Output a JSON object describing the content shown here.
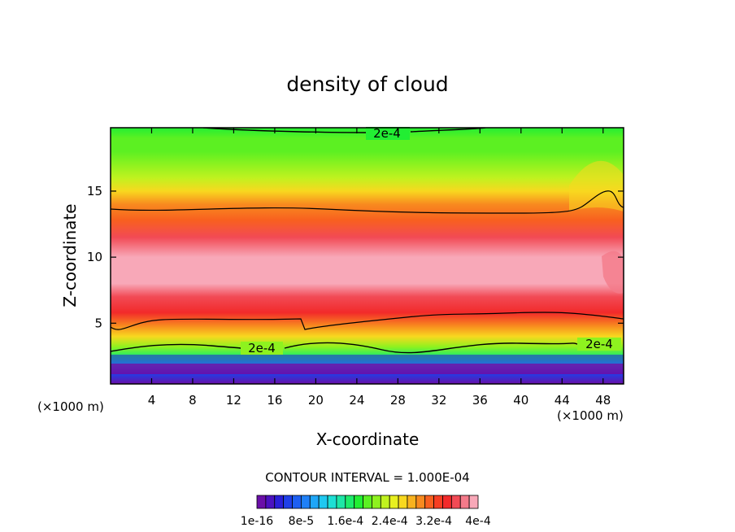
{
  "chart_data": {
    "type": "heatmap",
    "title": "density of cloud",
    "xlabel": "X-coordinate",
    "ylabel": "Z-coordinate",
    "x_unit_left": "(×1000 m)",
    "x_unit_right": "(×1000 m)",
    "xlim": [
      0,
      50
    ],
    "ylim": [
      0.4,
      19.8
    ],
    "xticks": [
      4,
      8,
      12,
      16,
      20,
      24,
      28,
      32,
      36,
      40,
      44,
      48
    ],
    "yticks": [
      5,
      10,
      15
    ],
    "contour_interval_text": "CONTOUR INTERVAL = 1.000E-04",
    "contour_lines": [
      {
        "label": "2e-4",
        "z_low_edge": 3.3,
        "z_high_edge": 19.6
      },
      {
        "label": "",
        "level": "3e-4",
        "z_low_edge": 5.0,
        "z_high_edge": 13.6
      }
    ],
    "vertical_profile": {
      "z": [
        0.4,
        1.2,
        1.8,
        2.5,
        3.2,
        4.0,
        4.8,
        5.8,
        7.0,
        8.0,
        10.0,
        11.5,
        12.8,
        14.0,
        15.0,
        16.0,
        17.0,
        18.0,
        19.0,
        19.8
      ],
      "value": [
        0,
        5e-05,
        0.00012,
        0.00017,
        0.00021,
        0.00026,
        0.0003,
        0.00034,
        0.000365,
        0.000385,
        0.000385,
        0.00036,
        0.00032,
        0.00029,
        0.00026,
        0.00024,
        0.00022,
        0.000205,
        0.000195,
        0.00019
      ]
    },
    "colorbar": {
      "min": 1e-16,
      "max": 0.0004,
      "levels": 24,
      "labels": [
        "1e-16",
        "8e-5",
        "1.6e-4",
        "2.4e-4",
        "3.2e-4",
        "4e-4"
      ],
      "colors": [
        "#6a0fa8",
        "#4b12c0",
        "#2a1fd8",
        "#1f3fe8",
        "#1d5ff2",
        "#1f80f7",
        "#1fa6f7",
        "#1fc8f0",
        "#1ddfd4",
        "#1de6a6",
        "#1deb6a",
        "#22ee33",
        "#5cf022",
        "#8ef21f",
        "#c0f21f",
        "#e8f01f",
        "#f8d81f",
        "#f8b21f",
        "#f88a1f",
        "#f8601f",
        "#f63e22",
        "#f22a2a",
        "#f24a55",
        "#f47a8a",
        "#f8a8b8"
      ]
    }
  }
}
